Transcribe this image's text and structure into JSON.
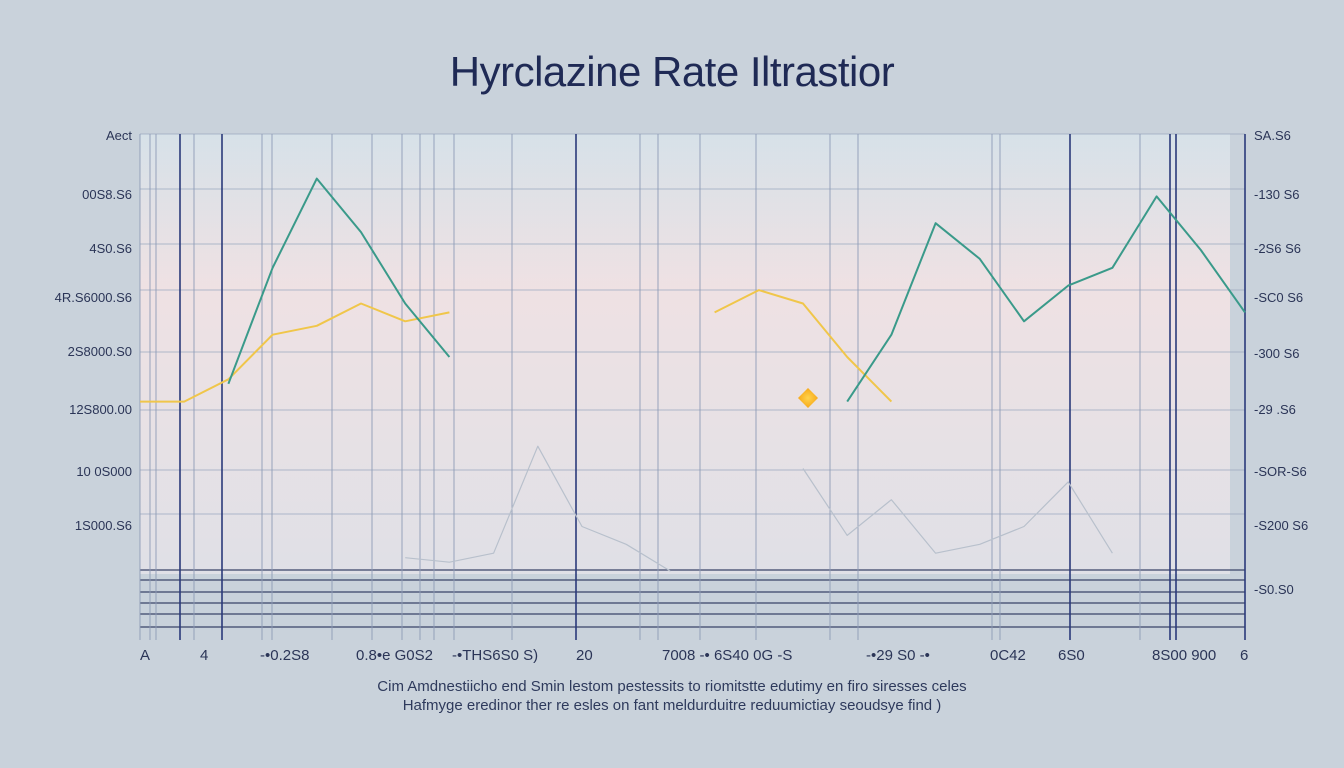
{
  "chart_data": {
    "type": "line",
    "title": "Hyrclazine Rate Iltrastior",
    "y_left_ticks": [
      "Aect",
      "00S8.S6",
      "4S0.S6",
      "4R.S6000.S6",
      "2S8000.S0",
      "12S800.00",
      "10 0S000",
      "1S000.S6"
    ],
    "y_right_ticks": [
      "SA.S6",
      "-130 S6",
      "-2S6 S6",
      "-SC0 S6",
      "-300 S6",
      "-29 .S6",
      "-SOR-S6",
      "-S200 S6",
      "-S0.S0"
    ],
    "x_ticks": [
      "A",
      "4",
      "-•0.2S8",
      "0.8•e G0S2",
      "-•THS6S0 S)",
      "20",
      "7008 -• 6S40 0G -S",
      "-•29 S0 -•",
      "0C42",
      "6S0",
      "8S00 900",
      "6"
    ],
    "x": [
      0,
      4,
      8,
      12,
      16,
      20,
      24,
      28,
      32,
      36,
      40,
      44,
      48,
      52,
      56,
      60,
      64,
      68,
      72,
      76,
      80,
      84,
      88,
      92,
      96,
      100
    ],
    "series": [
      {
        "color": "#f0c64a",
        "values": [
          40,
          40,
          45,
          55,
          57,
          62,
          58,
          60,
          null,
          null,
          null,
          null,
          null,
          60,
          65,
          62,
          50,
          40,
          null,
          null,
          null,
          null,
          null,
          null,
          null,
          null
        ]
      },
      {
        "color": "#3a9a8a",
        "values": [
          null,
          null,
          44,
          70,
          90,
          78,
          62,
          50,
          null,
          null,
          null,
          null,
          null,
          null,
          null,
          null,
          40,
          55,
          80,
          72,
          58,
          66,
          70,
          86,
          74,
          60
        ]
      },
      {
        "color": "#b8c0cc",
        "values": [
          null,
          null,
          null,
          null,
          null,
          null,
          5,
          4,
          6,
          30,
          12,
          8,
          2,
          null,
          null,
          25,
          10,
          18,
          6,
          8,
          12,
          22,
          6,
          null,
          null,
          null
        ]
      }
    ],
    "grid": "vertical",
    "legend": "none"
  },
  "caption": {
    "line1": "Cim Amdnestiicho end Smin lestom pestessits to riomitstte edutimy en firo siresses celes",
    "line2": "Hafmyge eredinor ther re esles on fant meldurduitre reduumictiay seoudsye find )"
  },
  "colors": {
    "background": "#c9d2db",
    "title": "#1f2a55",
    "grid": "#2b3a6a",
    "line_gold": "#f0c64a",
    "line_teal": "#3a9a8a",
    "marker": "#f2b01a"
  }
}
